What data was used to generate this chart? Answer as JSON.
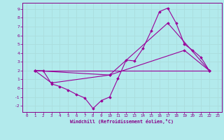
{
  "title": "",
  "xlabel": "Windchill (Refroidissement éolien,°C)",
  "ylabel": "",
  "background_color": "#b2eaec",
  "grid_color": "#aadddd",
  "line_color": "#990099",
  "xlim": [
    -0.5,
    23.5
  ],
  "ylim": [
    -2.7,
    9.7
  ],
  "xticks": [
    0,
    1,
    2,
    3,
    4,
    5,
    6,
    7,
    8,
    9,
    10,
    11,
    12,
    13,
    14,
    15,
    16,
    17,
    18,
    19,
    20,
    21,
    22,
    23
  ],
  "yticks": [
    -2,
    -1,
    0,
    1,
    2,
    3,
    4,
    5,
    6,
    7,
    8,
    9
  ],
  "line1_x": [
    1,
    2,
    3,
    4,
    5,
    6,
    7,
    8,
    9,
    10,
    11,
    12,
    13,
    14,
    15,
    16,
    17,
    18,
    19,
    20,
    21,
    22
  ],
  "line1_y": [
    2.0,
    2.0,
    0.5,
    0.2,
    -0.2,
    -0.7,
    -1.1,
    -2.3,
    -1.4,
    -1.0,
    1.1,
    3.2,
    3.1,
    4.5,
    6.5,
    8.7,
    9.1,
    7.4,
    5.0,
    4.3,
    3.5,
    2.0
  ],
  "line2_x": [
    1,
    3,
    10,
    17,
    22
  ],
  "line2_y": [
    2.0,
    0.6,
    1.5,
    7.4,
    2.0
  ],
  "line3_x": [
    1,
    10,
    19,
    22
  ],
  "line3_y": [
    2.0,
    1.5,
    4.3,
    2.0
  ],
  "line4_x": [
    1,
    22
  ],
  "line4_y": [
    2.0,
    2.0
  ]
}
